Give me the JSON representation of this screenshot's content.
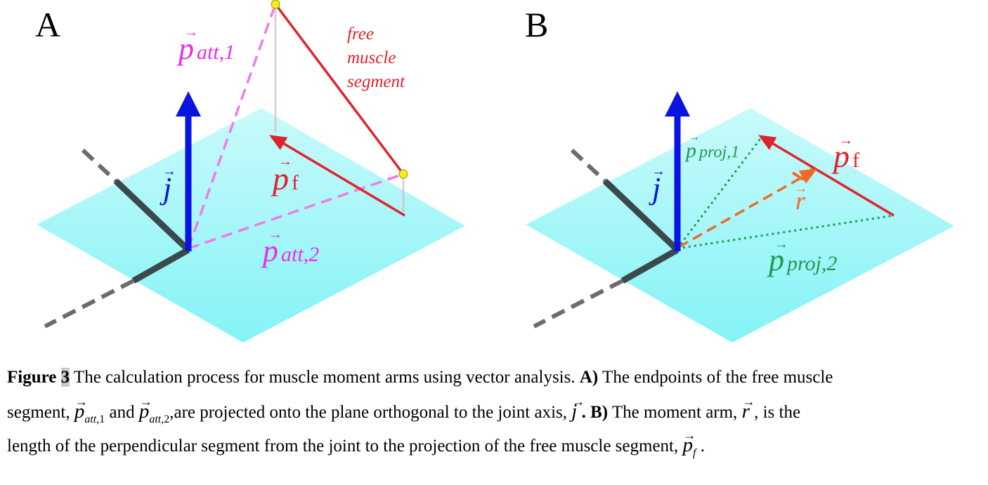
{
  "panels": [
    {
      "letter": "A",
      "labels": {
        "p_att1": {
          "main": "p",
          "sub": "att,1"
        },
        "p_att2": {
          "main": "p",
          "sub": "att,2"
        },
        "p_f": {
          "main": "p",
          "sub": "f"
        },
        "j": "j",
        "free_muscle": [
          "free",
          "muscle",
          "segment"
        ]
      }
    },
    {
      "letter": "B",
      "labels": {
        "p_proj1": {
          "main": "p",
          "sub": "proj,1"
        },
        "p_proj2": {
          "main": "p",
          "sub": "proj,2"
        },
        "p_f": {
          "main": "p",
          "sub": "f"
        },
        "j": "j",
        "r": "r"
      }
    }
  ],
  "colors": {
    "plane": "#8ff4f7",
    "joint_axis": "#3a4a4c",
    "j_vector": "#0a14e0",
    "muscle": "#e0232b",
    "attachment": "#f033e6",
    "projection": "#1f9a4f",
    "moment_arm": "#ef6a24",
    "endpoint": "#f5ee1a"
  },
  "caption": {
    "figure_label": "Figure ",
    "figure_number": "3",
    "intro": " The calculation process for muscle moment arms using vector analysis. ",
    "a_label": "A)",
    "a_text_1": " The endpoints of the free muscle",
    "a_text_2": "segment, ",
    "sym_p": "p",
    "sub_att": "att",
    "sub_1": ",1",
    "sub_2": ",2",
    "and_text": " and ",
    "a_text_3": ",are projected onto the plane orthogonal to the joint axis, ",
    "sym_j": "j",
    "b_label": " . B)",
    "b_text_1": " The moment arm, ",
    "sym_r": "r",
    "b_text_2": " , is the",
    "b_text_3": "length of the perpendicular segment from the joint to the projection of the free muscle segment, ",
    "sub_f": "f",
    "end": " ."
  }
}
